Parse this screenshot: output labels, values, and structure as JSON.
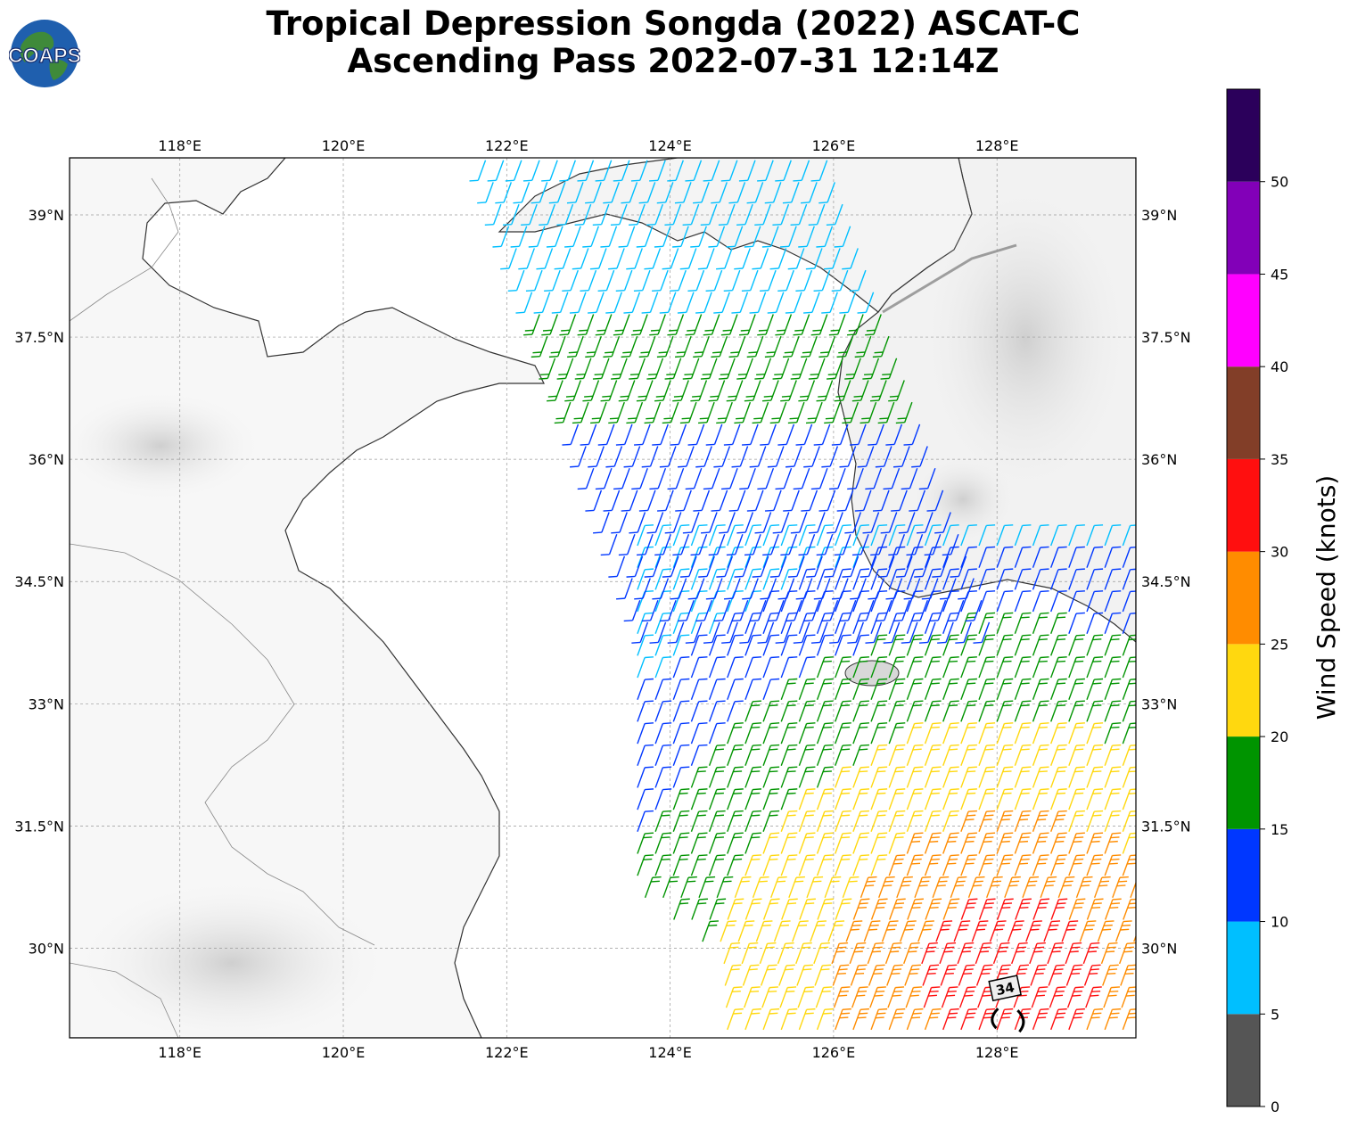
{
  "title": {
    "line1": "Tropical Depression Songda (2022) ASCAT-C",
    "line2": "Ascending Pass 2022-07-31 12:14Z"
  },
  "logo_text": "COAPS",
  "map": {
    "lon_range": [
      116.65,
      129.7
    ],
    "lat_range": [
      28.9,
      39.7
    ],
    "lon_ticks": [
      118,
      120,
      122,
      124,
      126,
      128
    ],
    "lon_tick_labels": [
      "118°E",
      "120°E",
      "122°E",
      "124°E",
      "126°E",
      "128°E"
    ],
    "lat_ticks": [
      30,
      31.5,
      33,
      34.5,
      36,
      37.5,
      39
    ],
    "lat_tick_labels": [
      "30°N",
      "31.5°N",
      "33°N",
      "34.5°N",
      "36°N",
      "37.5°N",
      "39°N"
    ],
    "grid": true
  },
  "storm_marker": {
    "label": "34",
    "lon": 128.1,
    "lat": 29.5
  },
  "colorbar": {
    "label": "Wind Speed (knots)",
    "tick_labels": [
      "0",
      "5",
      "10",
      "15",
      "20",
      "25",
      "30",
      "35",
      "40",
      "45",
      "50"
    ],
    "bins": [
      {
        "min": 0,
        "max": 5,
        "color": "#555555"
      },
      {
        "min": 5,
        "max": 10,
        "color": "#00bfff"
      },
      {
        "min": 10,
        "max": 15,
        "color": "#0037ff"
      },
      {
        "min": 15,
        "max": 20,
        "color": "#009400"
      },
      {
        "min": 20,
        "max": 25,
        "color": "#ffd80f"
      },
      {
        "min": 25,
        "max": 30,
        "color": "#ff8c00"
      },
      {
        "min": 30,
        "max": 35,
        "color": "#ff0f0f"
      },
      {
        "min": 35,
        "max": 40,
        "color": "#823e28"
      },
      {
        "min": 40,
        "max": 45,
        "color": "#ff00ff"
      },
      {
        "min": 45,
        "max": 50,
        "color": "#8200b8"
      },
      {
        "min": 50,
        "max": 55,
        "color": "#2b005b"
      }
    ]
  }
}
